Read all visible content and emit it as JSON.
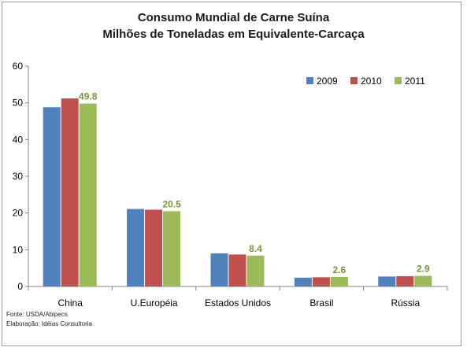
{
  "chart_data": {
    "type": "bar",
    "title": "Consumo Mundial de Carne Suína",
    "subtitle": "Milhões de Toneladas em Equivalente-Carcaça",
    "categories": [
      "China",
      "U.Européia",
      "Estados Unidos",
      "Brasil",
      "Rússia"
    ],
    "series": [
      {
        "name": "2009",
        "values": [
          48.8,
          21.1,
          9.0,
          2.4,
          2.7
        ],
        "color": "#4f81bd"
      },
      {
        "name": "2010",
        "values": [
          51.2,
          20.9,
          8.7,
          2.5,
          2.8
        ],
        "color": "#c0504d"
      },
      {
        "name": "2011",
        "values": [
          49.8,
          20.5,
          8.4,
          2.6,
          2.9
        ],
        "color": "#9bbb59"
      }
    ],
    "data_labels": [
      "49.8",
      "20.5",
      "8.4",
      "2.6",
      "2.9"
    ],
    "data_label_color": "#77933c",
    "ylim": [
      0,
      60
    ],
    "yticks": [
      "0",
      "10",
      "20",
      "30",
      "40",
      "50",
      "60"
    ],
    "xlabel": "",
    "ylabel": "",
    "grid": false,
    "legend_position": "top-right"
  },
  "footnote": {
    "source": "Fonte: USDA/Abipecs",
    "elaboration": "Elaboração: Idéias Consultoria"
  }
}
